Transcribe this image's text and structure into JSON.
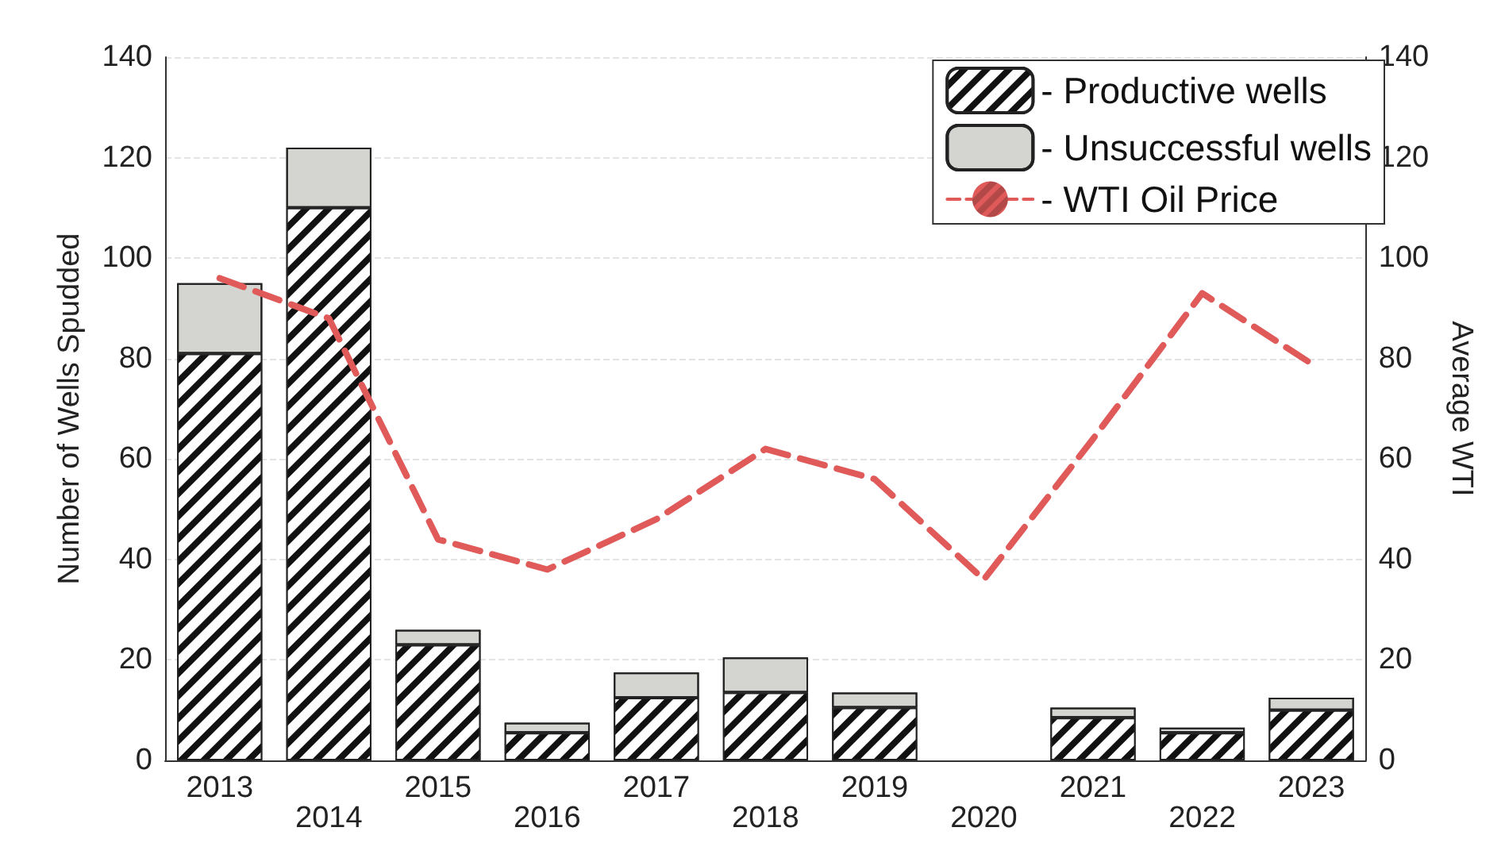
{
  "chart_data": {
    "type": "bar",
    "stacked": true,
    "categories": [
      "2013",
      "2014",
      "2015",
      "2016",
      "2017",
      "2018",
      "2019",
      "2020",
      "2021",
      "2022",
      "2023"
    ],
    "ylabel": "Number of Wells Spudded",
    "y2label": "Average WTI",
    "ylim": [
      0,
      140
    ],
    "yticks": [
      0,
      20,
      40,
      60,
      80,
      100,
      120,
      140
    ],
    "y2lim": [
      0,
      140
    ],
    "y2ticks": [
      0,
      20,
      40,
      60,
      80,
      100,
      120,
      140
    ],
    "grid": "y",
    "legend": "top right",
    "series": [
      {
        "name": "- Productive wells",
        "color": "#111111",
        "values": [
          81,
          110,
          23,
          5.5,
          12.5,
          13.5,
          10.5,
          0,
          8.5,
          5.5,
          10
        ]
      },
      {
        "name": "- Unsuccessful wells",
        "color": "#d4d4d0",
        "values": [
          14,
          12,
          3,
          2,
          5,
          7,
          3,
          0,
          2,
          1,
          2.5
        ]
      },
      {
        "name": "- WTI Oil Price",
        "type": "line",
        "axis": "y2",
        "color": "#e05a5a",
        "line_style": "dashed",
        "marker": "none",
        "values": [
          96,
          88,
          44,
          38,
          48,
          62,
          56,
          36,
          64,
          93,
          79
        ]
      }
    ]
  }
}
